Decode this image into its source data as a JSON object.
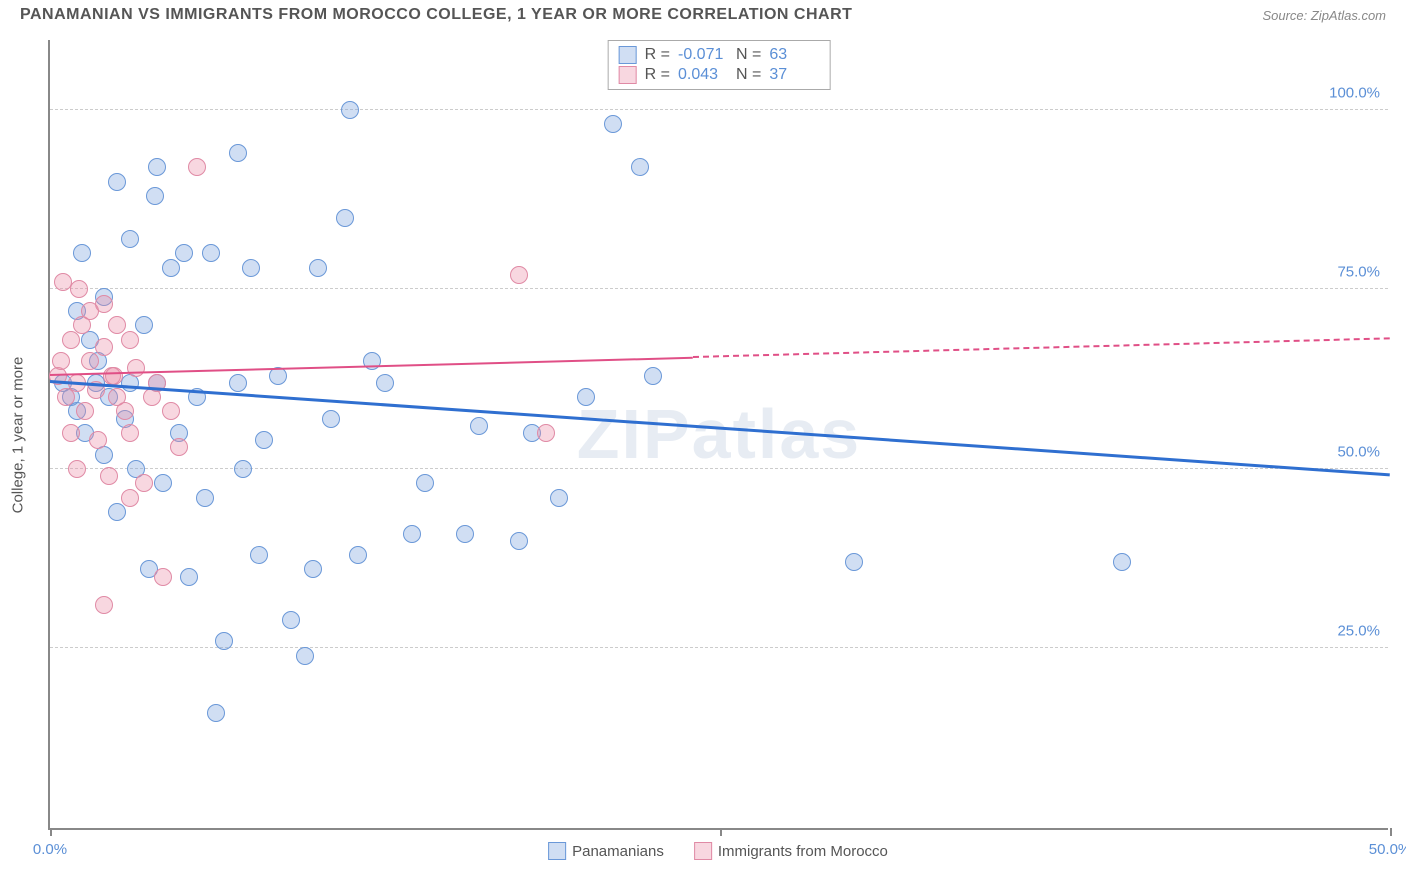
{
  "title": "PANAMANIAN VS IMMIGRANTS FROM MOROCCO COLLEGE, 1 YEAR OR MORE CORRELATION CHART",
  "source": "Source: ZipAtlas.com",
  "watermark": "ZIPatlas",
  "ylabel": "College, 1 year or more",
  "chart": {
    "type": "scatter",
    "xlim": [
      0,
      50
    ],
    "ylim": [
      0,
      110
    ],
    "ytick_values": [
      25,
      50,
      75,
      100
    ],
    "ytick_labels": [
      "25.0%",
      "50.0%",
      "75.0%",
      "100.0%"
    ],
    "xtick_values": [
      0,
      25,
      50
    ],
    "xtick_labels": [
      "0.0%",
      "",
      "50.0%"
    ],
    "grid_color": "#cccccc",
    "background_color": "#ffffff",
    "point_radius": 9,
    "point_stroke_width": 1.5,
    "series": [
      {
        "name": "Panamanians",
        "fill": "rgba(120,160,220,0.35)",
        "stroke": "#6a98d8",
        "R": "-0.071",
        "N": "63",
        "trend": {
          "x1": 0,
          "y1": 62,
          "x2": 50,
          "y2": 49,
          "solid_until_x": 50,
          "color": "#2f6fd0",
          "width": 3
        },
        "points": [
          [
            0.5,
            62
          ],
          [
            0.8,
            60
          ],
          [
            1.0,
            72
          ],
          [
            1.0,
            58
          ],
          [
            1.2,
            80
          ],
          [
            1.3,
            55
          ],
          [
            1.5,
            68
          ],
          [
            1.7,
            62
          ],
          [
            1.8,
            65
          ],
          [
            2.0,
            52
          ],
          [
            2.0,
            74
          ],
          [
            2.2,
            60
          ],
          [
            2.5,
            90
          ],
          [
            2.5,
            44
          ],
          [
            2.8,
            57
          ],
          [
            3.0,
            62
          ],
          [
            3.0,
            82
          ],
          [
            3.2,
            50
          ],
          [
            3.5,
            70
          ],
          [
            3.7,
            36
          ],
          [
            4.0,
            62
          ],
          [
            4.0,
            92
          ],
          [
            4.2,
            48
          ],
          [
            4.5,
            78
          ],
          [
            4.8,
            55
          ],
          [
            5.0,
            80
          ],
          [
            5.2,
            35
          ],
          [
            5.5,
            60
          ],
          [
            5.8,
            46
          ],
          [
            6.0,
            80
          ],
          [
            6.2,
            16
          ],
          [
            6.5,
            26
          ],
          [
            7.0,
            62
          ],
          [
            7.0,
            94
          ],
          [
            7.5,
            78
          ],
          [
            7.8,
            38
          ],
          [
            8.0,
            54
          ],
          [
            8.5,
            63
          ],
          [
            9.0,
            29
          ],
          [
            9.5,
            24
          ],
          [
            9.8,
            36
          ],
          [
            10.0,
            78
          ],
          [
            10.5,
            57
          ],
          [
            11.0,
            85
          ],
          [
            11.2,
            100
          ],
          [
            11.5,
            38
          ],
          [
            12.0,
            65
          ],
          [
            12.5,
            62
          ],
          [
            13.5,
            41
          ],
          [
            14.0,
            48
          ],
          [
            15.5,
            41
          ],
          [
            16.0,
            56
          ],
          [
            17.5,
            40
          ],
          [
            18.0,
            55
          ],
          [
            19.0,
            46
          ],
          [
            20.0,
            60
          ],
          [
            21.0,
            98
          ],
          [
            22.0,
            92
          ],
          [
            22.5,
            63
          ],
          [
            30.0,
            37
          ],
          [
            40.0,
            37
          ],
          [
            7.2,
            50
          ],
          [
            3.9,
            88
          ]
        ]
      },
      {
        "name": "Immigrants from Morocco",
        "fill": "rgba(235,140,165,0.35)",
        "stroke": "#e08aa5",
        "R": "0.043",
        "N": "37",
        "trend": {
          "x1": 0,
          "y1": 63,
          "x2": 50,
          "y2": 68,
          "solid_until_x": 24,
          "color": "#e04f86",
          "width": 2
        },
        "points": [
          [
            0.3,
            63
          ],
          [
            0.5,
            76
          ],
          [
            0.6,
            60
          ],
          [
            0.8,
            68
          ],
          [
            0.8,
            55
          ],
          [
            1.0,
            62
          ],
          [
            1.0,
            50
          ],
          [
            1.2,
            70
          ],
          [
            1.3,
            58
          ],
          [
            1.5,
            65
          ],
          [
            1.5,
            72
          ],
          [
            1.7,
            61
          ],
          [
            1.8,
            54
          ],
          [
            2.0,
            67
          ],
          [
            2.0,
            73
          ],
          [
            2.2,
            49
          ],
          [
            2.3,
            63
          ],
          [
            2.5,
            60
          ],
          [
            2.5,
            70
          ],
          [
            2.8,
            58
          ],
          [
            3.0,
            55
          ],
          [
            3.0,
            68
          ],
          [
            3.2,
            64
          ],
          [
            3.5,
            48
          ],
          [
            3.8,
            60
          ],
          [
            4.0,
            62
          ],
          [
            4.2,
            35
          ],
          [
            4.5,
            58
          ],
          [
            2.0,
            31
          ],
          [
            5.5,
            92
          ],
          [
            3.0,
            46
          ],
          [
            4.8,
            53
          ],
          [
            1.1,
            75
          ],
          [
            0.4,
            65
          ],
          [
            17.5,
            77
          ],
          [
            18.5,
            55
          ],
          [
            2.4,
            63
          ]
        ]
      }
    ]
  },
  "legend": {
    "top_swatch_labels": [
      "R =",
      "N ="
    ],
    "bottom_items": [
      "Panamanians",
      "Immigrants from Morocco"
    ]
  }
}
